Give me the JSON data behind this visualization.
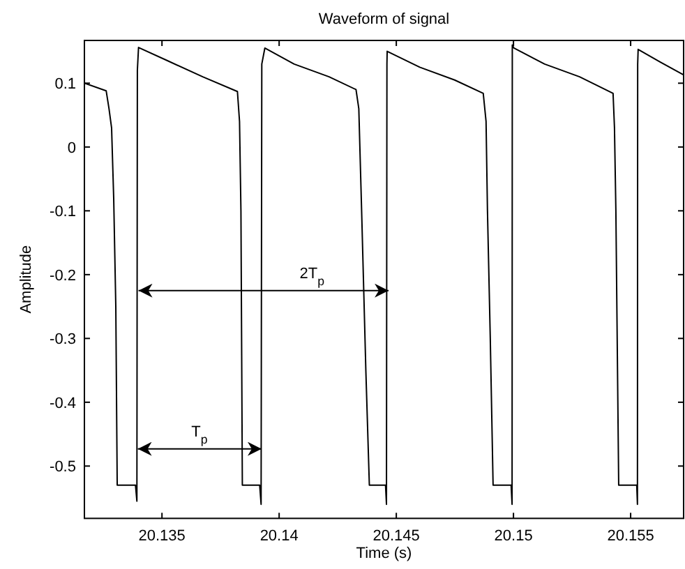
{
  "chart_data": {
    "type": "line",
    "title": "Waveform of signal",
    "xlabel": "Time (s)",
    "ylabel": "Amplitude",
    "xlim": [
      20.13169,
      20.15726
    ],
    "ylim": [
      -0.582,
      0.167
    ],
    "xticks": [
      20.135,
      20.14,
      20.145,
      20.15,
      20.155
    ],
    "yticks": [
      -0.5,
      -0.4,
      -0.3,
      -0.2,
      -0.1,
      0,
      0.1
    ],
    "grid": false,
    "marker": "none",
    "line_style": "solid",
    "series": [
      {
        "color": "#000000",
        "x": [
          20.13169,
          20.13262,
          20.13274,
          20.13285,
          20.13294,
          20.13303,
          20.13309,
          20.13387,
          20.13393,
          20.13395,
          20.134,
          20.13525,
          20.13674,
          20.13822,
          20.13831,
          20.13837,
          20.13843,
          20.13917,
          20.13923,
          20.13926,
          20.13939,
          20.14064,
          20.14213,
          20.14328,
          20.1434,
          20.14352,
          20.1437,
          20.14385,
          20.14454,
          20.14458,
          20.1446,
          20.14461,
          20.146,
          20.14749,
          20.14871,
          20.14883,
          20.14889,
          20.14901,
          20.14913,
          20.1499,
          20.14994,
          20.14995,
          20.15002,
          20.15133,
          20.15282,
          20.15425,
          20.15431,
          20.15437,
          20.15449,
          20.15526,
          20.15529,
          20.1553,
          20.15532,
          20.15627,
          20.15726
        ],
        "values": [
          0.1,
          0.088,
          0.06,
          0.03,
          -0.08,
          -0.25,
          -0.53,
          -0.53,
          -0.555,
          0.12,
          0.156,
          0.135,
          0.11,
          0.087,
          0.04,
          -0.1,
          -0.53,
          -0.53,
          -0.56,
          0.13,
          0.155,
          0.13,
          0.11,
          0.09,
          0.06,
          -0.1,
          -0.35,
          -0.53,
          -0.53,
          -0.56,
          0.13,
          0.15,
          0.125,
          0.105,
          0.084,
          0.04,
          -0.1,
          -0.3,
          -0.53,
          -0.53,
          -0.56,
          0.16,
          0.155,
          0.13,
          0.11,
          0.084,
          0.03,
          -0.1,
          -0.53,
          -0.53,
          -0.56,
          0.13,
          0.153,
          0.133,
          0.113
        ]
      },
      {
        "color": "#000000",
        "x": [
          20.13397,
          20.13925
        ],
        "values": [
          -0.473,
          -0.473
        ]
      },
      {
        "color": "#000000",
        "x": [
          20.134,
          20.14467
        ],
        "values": [
          -0.225,
          -0.225
        ]
      }
    ],
    "annotations": [
      {
        "text": "T$_{p}$",
        "x": 20.1366,
        "y": -0.473
      },
      {
        "text": "2T$_{p}$",
        "x": 20.1414,
        "y": -0.225
      }
    ]
  }
}
